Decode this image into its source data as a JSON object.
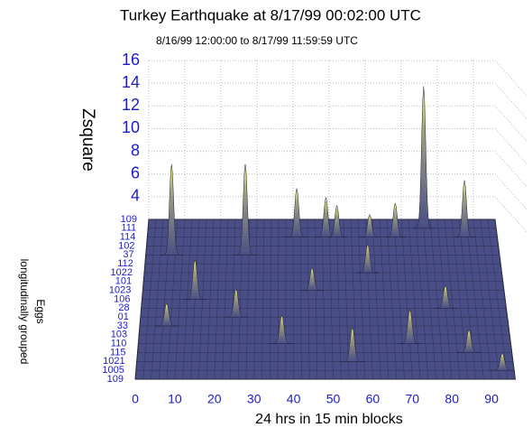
{
  "chart_data": {
    "type": "surface3d",
    "title": "Turkey Earthquake at 8/17/99 00:02:00 UTC",
    "subtitle": "8/16/99 12:00:00 to 8/17/99 11:59:59 UTC",
    "zlabel": "Zsquare",
    "xlabel": "24 hrs in 15 min blocks",
    "ylabel": [
      "Eggs",
      "longitudinally grouped"
    ],
    "rows": [
      "109",
      "111",
      "114",
      "102",
      "37",
      "112",
      "1022",
      "101",
      "1023",
      "106",
      "28",
      "01",
      "33",
      "103",
      "110",
      "115",
      "1021",
      "1005",
      "109"
    ],
    "xlim": [
      0,
      96
    ],
    "xticks": [
      0,
      10,
      20,
      30,
      40,
      50,
      60,
      70,
      80,
      90
    ],
    "zlim": [
      2,
      16
    ],
    "zticks": [
      4,
      6,
      8,
      10,
      12,
      14,
      16
    ],
    "grid": true,
    "color": "#4a4e86",
    "peaks": [
      {
        "x": 76,
        "row": 1,
        "z": 14.5
      },
      {
        "x": 41,
        "row": 2,
        "z": 6.3
      },
      {
        "x": 49,
        "row": 2,
        "z": 5.5
      },
      {
        "x": 52,
        "row": 2,
        "z": 4.8
      },
      {
        "x": 61,
        "row": 2,
        "z": 4
      },
      {
        "x": 68,
        "row": 2,
        "z": 5
      },
      {
        "x": 87,
        "row": 2,
        "z": 7
      },
      {
        "x": 7,
        "row": 4,
        "z": 10
      },
      {
        "x": 27,
        "row": 4,
        "z": 10
      },
      {
        "x": 60,
        "row": 6,
        "z": 4.5
      },
      {
        "x": 45,
        "row": 8,
        "z": 4
      },
      {
        "x": 14,
        "row": 9,
        "z": 5.5
      },
      {
        "x": 80,
        "row": 10,
        "z": 4
      },
      {
        "x": 25,
        "row": 11,
        "z": 4.5
      },
      {
        "x": 7,
        "row": 12,
        "z": 4
      },
      {
        "x": 37,
        "row": 14,
        "z": 4.5
      },
      {
        "x": 70,
        "row": 14,
        "z": 5
      },
      {
        "x": 85,
        "row": 15,
        "z": 4
      },
      {
        "x": 55,
        "row": 16,
        "z": 5
      },
      {
        "x": 93,
        "row": 17,
        "z": 3.5
      }
    ]
  }
}
